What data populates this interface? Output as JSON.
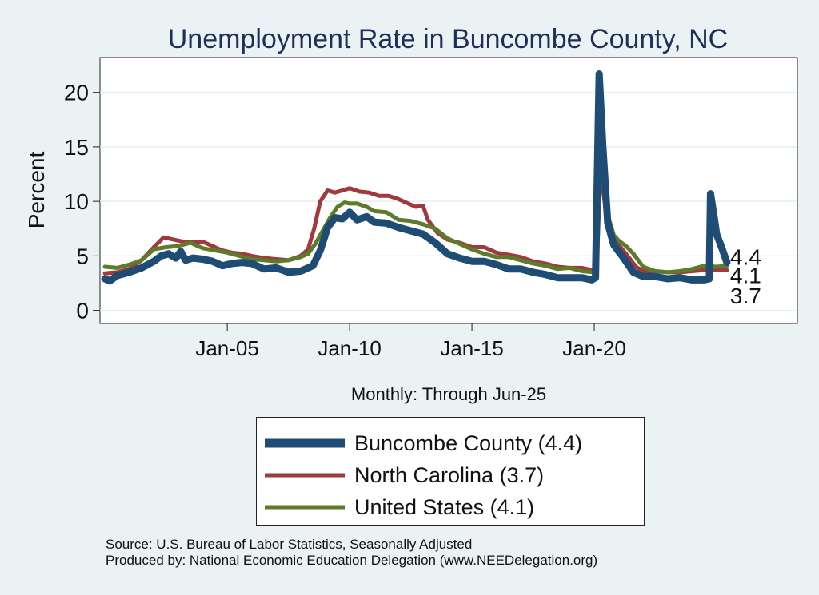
{
  "chart_data": {
    "type": "line",
    "title": "Unemployment Rate in Buncombe  County, NC",
    "xlabel": "Monthly: Through Jun-25",
    "ylabel": "Percent",
    "xlim": [
      1999.8,
      2028.3
    ],
    "ylim": [
      -1.2,
      23.2
    ],
    "yticks": [
      0,
      5,
      10,
      15,
      20
    ],
    "xticks": [
      {
        "value": 2005.0,
        "label": "Jan-05"
      },
      {
        "value": 2010.0,
        "label": "Jan-10"
      },
      {
        "value": 2015.0,
        "label": "Jan-15"
      },
      {
        "value": 2020.0,
        "label": "Jan-20"
      }
    ],
    "grid": true,
    "series": [
      {
        "name": "North Carolina",
        "color": "#a03a3e",
        "last_value": 3.7,
        "points": [
          [
            2000.0,
            3.4
          ],
          [
            2000.5,
            3.5
          ],
          [
            2001.0,
            3.8
          ],
          [
            2001.5,
            4.6
          ],
          [
            2002.0,
            5.8
          ],
          [
            2002.4,
            6.7
          ],
          [
            2002.8,
            6.5
          ],
          [
            2003.2,
            6.3
          ],
          [
            2003.6,
            6.3
          ],
          [
            2004.0,
            6.3
          ],
          [
            2004.4,
            5.9
          ],
          [
            2004.8,
            5.5
          ],
          [
            2005.2,
            5.3
          ],
          [
            2005.6,
            5.2
          ],
          [
            2006.0,
            5.0
          ],
          [
            2006.5,
            4.8
          ],
          [
            2007.0,
            4.7
          ],
          [
            2007.5,
            4.6
          ],
          [
            2008.0,
            5.0
          ],
          [
            2008.3,
            5.6
          ],
          [
            2008.55,
            7.5
          ],
          [
            2008.8,
            10.0
          ],
          [
            2009.1,
            11.0
          ],
          [
            2009.4,
            10.8
          ],
          [
            2009.7,
            11.0
          ],
          [
            2010.0,
            11.2
          ],
          [
            2010.4,
            10.9
          ],
          [
            2010.8,
            10.8
          ],
          [
            2011.2,
            10.5
          ],
          [
            2011.6,
            10.5
          ],
          [
            2012.0,
            10.2
          ],
          [
            2012.4,
            9.8
          ],
          [
            2012.7,
            9.5
          ],
          [
            2013.0,
            9.6
          ],
          [
            2013.2,
            8.3
          ],
          [
            2013.6,
            7.1
          ],
          [
            2014.0,
            6.5
          ],
          [
            2014.5,
            6.2
          ],
          [
            2015.0,
            5.8
          ],
          [
            2015.5,
            5.8
          ],
          [
            2016.0,
            5.3
          ],
          [
            2016.5,
            5.1
          ],
          [
            2017.0,
            4.9
          ],
          [
            2017.5,
            4.5
          ],
          [
            2018.0,
            4.3
          ],
          [
            2018.5,
            4.0
          ],
          [
            2019.0,
            3.9
          ],
          [
            2019.5,
            3.9
          ],
          [
            2019.9,
            3.7
          ],
          [
            2020.1,
            3.6
          ],
          [
            2020.25,
            13.0
          ],
          [
            2020.45,
            9.5
          ],
          [
            2020.7,
            7.0
          ],
          [
            2021.0,
            6.0
          ],
          [
            2021.3,
            5.2
          ],
          [
            2021.7,
            4.0
          ],
          [
            2022.0,
            3.6
          ],
          [
            2022.5,
            3.6
          ],
          [
            2023.0,
            3.5
          ],
          [
            2023.5,
            3.5
          ],
          [
            2024.0,
            3.6
          ],
          [
            2024.5,
            3.7
          ],
          [
            2024.8,
            3.7
          ],
          [
            2025.0,
            3.7
          ],
          [
            2025.42,
            3.7
          ]
        ]
      },
      {
        "name": "United States",
        "color": "#5c7c2a",
        "last_value": 4.1,
        "points": [
          [
            2000.0,
            4.0
          ],
          [
            2000.5,
            3.9
          ],
          [
            2001.0,
            4.2
          ],
          [
            2001.5,
            4.6
          ],
          [
            2002.0,
            5.6
          ],
          [
            2002.5,
            5.8
          ],
          [
            2003.0,
            5.9
          ],
          [
            2003.5,
            6.2
          ],
          [
            2004.0,
            5.7
          ],
          [
            2004.5,
            5.5
          ],
          [
            2005.0,
            5.3
          ],
          [
            2005.5,
            5.0
          ],
          [
            2006.0,
            4.7
          ],
          [
            2006.5,
            4.6
          ],
          [
            2007.0,
            4.5
          ],
          [
            2007.5,
            4.6
          ],
          [
            2008.0,
            4.9
          ],
          [
            2008.3,
            5.2
          ],
          [
            2008.6,
            6.1
          ],
          [
            2008.9,
            7.3
          ],
          [
            2009.2,
            8.5
          ],
          [
            2009.5,
            9.5
          ],
          [
            2009.8,
            9.9
          ],
          [
            2010.0,
            9.8
          ],
          [
            2010.3,
            9.8
          ],
          [
            2010.7,
            9.5
          ],
          [
            2011.0,
            9.1
          ],
          [
            2011.5,
            9.0
          ],
          [
            2012.0,
            8.3
          ],
          [
            2012.5,
            8.2
          ],
          [
            2013.0,
            7.9
          ],
          [
            2013.5,
            7.5
          ],
          [
            2014.0,
            6.6
          ],
          [
            2014.5,
            6.1
          ],
          [
            2015.0,
            5.6
          ],
          [
            2015.5,
            5.2
          ],
          [
            2016.0,
            4.9
          ],
          [
            2016.5,
            4.9
          ],
          [
            2017.0,
            4.6
          ],
          [
            2017.5,
            4.3
          ],
          [
            2018.0,
            4.1
          ],
          [
            2018.5,
            3.8
          ],
          [
            2019.0,
            3.9
          ],
          [
            2019.5,
            3.6
          ],
          [
            2020.0,
            3.5
          ],
          [
            2020.1,
            4.4
          ],
          [
            2020.25,
            14.7
          ],
          [
            2020.4,
            11.1
          ],
          [
            2020.6,
            8.4
          ],
          [
            2020.8,
            6.9
          ],
          [
            2021.0,
            6.4
          ],
          [
            2021.3,
            5.9
          ],
          [
            2021.6,
            5.2
          ],
          [
            2022.0,
            4.0
          ],
          [
            2022.5,
            3.6
          ],
          [
            2023.0,
            3.5
          ],
          [
            2023.5,
            3.6
          ],
          [
            2024.0,
            3.8
          ],
          [
            2024.5,
            4.1
          ],
          [
            2025.0,
            4.0
          ],
          [
            2025.42,
            4.1
          ]
        ]
      },
      {
        "name": "Buncombe  County",
        "color": "#1f4c74",
        "last_value": 4.4,
        "points": [
          [
            2000.0,
            2.9
          ],
          [
            2000.2,
            2.7
          ],
          [
            2000.5,
            3.2
          ],
          [
            2001.0,
            3.5
          ],
          [
            2001.5,
            3.9
          ],
          [
            2002.0,
            4.5
          ],
          [
            2002.3,
            5.0
          ],
          [
            2002.6,
            5.2
          ],
          [
            2002.9,
            4.8
          ],
          [
            2003.1,
            5.4
          ],
          [
            2003.3,
            4.6
          ],
          [
            2003.6,
            4.8
          ],
          [
            2004.0,
            4.7
          ],
          [
            2004.4,
            4.5
          ],
          [
            2004.8,
            4.1
          ],
          [
            2005.2,
            4.3
          ],
          [
            2005.6,
            4.4
          ],
          [
            2006.0,
            4.3
          ],
          [
            2006.5,
            3.8
          ],
          [
            2007.0,
            3.9
          ],
          [
            2007.5,
            3.5
          ],
          [
            2008.0,
            3.6
          ],
          [
            2008.5,
            4.1
          ],
          [
            2008.8,
            5.5
          ],
          [
            2009.1,
            7.6
          ],
          [
            2009.4,
            8.5
          ],
          [
            2009.7,
            8.4
          ],
          [
            2010.0,
            9.0
          ],
          [
            2010.3,
            8.3
          ],
          [
            2010.7,
            8.6
          ],
          [
            2011.0,
            8.1
          ],
          [
            2011.5,
            8.0
          ],
          [
            2012.0,
            7.6
          ],
          [
            2012.5,
            7.3
          ],
          [
            2013.0,
            7.0
          ],
          [
            2013.5,
            6.2
          ],
          [
            2014.0,
            5.2
          ],
          [
            2014.5,
            4.8
          ],
          [
            2015.0,
            4.5
          ],
          [
            2015.5,
            4.5
          ],
          [
            2016.0,
            4.2
          ],
          [
            2016.5,
            3.8
          ],
          [
            2017.0,
            3.8
          ],
          [
            2017.5,
            3.5
          ],
          [
            2018.0,
            3.3
          ],
          [
            2018.5,
            3.0
          ],
          [
            2019.0,
            3.0
          ],
          [
            2019.5,
            3.0
          ],
          [
            2019.9,
            2.8
          ],
          [
            2020.05,
            3.0
          ],
          [
            2020.2,
            21.7
          ],
          [
            2020.35,
            15.0
          ],
          [
            2020.55,
            8.0
          ],
          [
            2020.8,
            6.0
          ],
          [
            2021.2,
            4.8
          ],
          [
            2021.6,
            3.5
          ],
          [
            2022.0,
            3.1
          ],
          [
            2022.5,
            3.1
          ],
          [
            2023.0,
            2.9
          ],
          [
            2023.5,
            3.0
          ],
          [
            2024.0,
            2.8
          ],
          [
            2024.5,
            2.8
          ],
          [
            2024.7,
            2.9
          ],
          [
            2024.75,
            10.7
          ],
          [
            2024.9,
            8.5
          ],
          [
            2025.0,
            7.0
          ],
          [
            2025.2,
            5.8
          ],
          [
            2025.42,
            4.4
          ]
        ]
      }
    ],
    "end_labels": [
      "4.4",
      "4.1",
      "3.7"
    ]
  },
  "legend": {
    "items": [
      {
        "label": "Buncombe  County (4.4)",
        "color": "#1f4c74"
      },
      {
        "label": "North Carolina (3.7)",
        "color": "#a03a3e"
      },
      {
        "label": "United States (4.1)",
        "color": "#5c7c2a"
      }
    ]
  },
  "source": {
    "line1": "Source: U.S. Bureau of Labor Statistics, Seasonally Adjusted",
    "line2": "Produced by: National Economic Education Delegation (www.NEEDelegation.org)"
  }
}
